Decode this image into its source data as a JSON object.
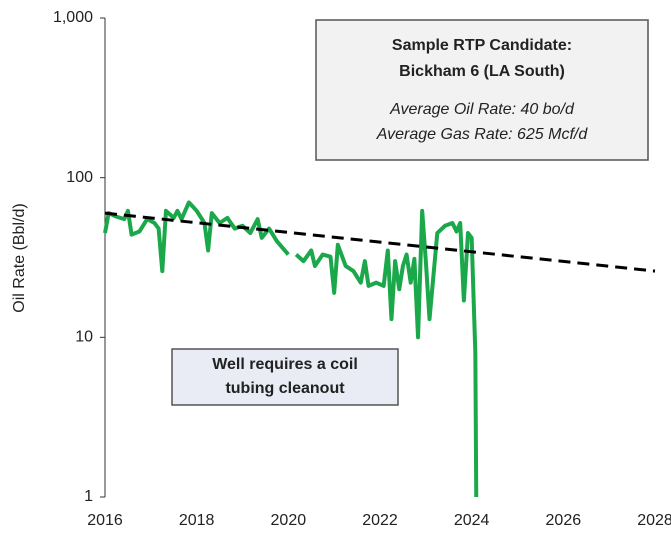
{
  "chart_data": {
    "type": "line",
    "ylabel": "Oil Rate (Bbl/d)",
    "log_y": true,
    "xlim": [
      2016,
      2028
    ],
    "xticks": [
      2016,
      2018,
      2020,
      2022,
      2024,
      2026,
      2028
    ],
    "ylim": [
      1,
      1000
    ],
    "yticks": [
      {
        "value": 1000,
        "label": "1,000"
      },
      100,
      10,
      1
    ],
    "x": [
      2016.0,
      2016.08,
      2016.25,
      2016.42,
      2016.5,
      2016.58,
      2016.75,
      2016.92,
      2017.08,
      2017.17,
      2017.25,
      2017.33,
      2017.5,
      2017.58,
      2017.67,
      2017.83,
      2018.0,
      2018.17,
      2018.25,
      2018.33,
      2018.5,
      2018.67,
      2018.83,
      2019.0,
      2019.17,
      2019.33,
      2019.42,
      2019.58,
      2019.75,
      2020.0,
      2020.08,
      2020.17,
      2020.33,
      2020.5,
      2020.58,
      2020.75,
      2020.92,
      2021.0,
      2021.08,
      2021.25,
      2021.42,
      2021.58,
      2021.67,
      2021.75,
      2021.92,
      2022.08,
      2022.17,
      2022.25,
      2022.33,
      2022.42,
      2022.5,
      2022.58,
      2022.67,
      2022.75,
      2022.83,
      2022.92,
      2023.0,
      2023.08,
      2023.25,
      2023.42,
      2023.58,
      2023.67,
      2023.75,
      2023.83,
      2023.92,
      2024.0,
      2024.08,
      2024.1
    ],
    "series": [
      {
        "color": "#1aa84a",
        "values": [
          45,
          60,
          57,
          55,
          62,
          44,
          46,
          55,
          52,
          48,
          26,
          62,
          56,
          62,
          55,
          70,
          62,
          52,
          35,
          60,
          52,
          56,
          48,
          50,
          45,
          55,
          42,
          48,
          40,
          33,
          null,
          33,
          30,
          35,
          28,
          33,
          32,
          19,
          38,
          28,
          26,
          22,
          30,
          21,
          22,
          21,
          35,
          13,
          30,
          20,
          28,
          33,
          22,
          31,
          10,
          62,
          30,
          13,
          45,
          50,
          52,
          46,
          52,
          17,
          45,
          42,
          8,
          1
        ]
      }
    ],
    "trend_line": {
      "x": [
        2016,
        2028
      ],
      "values": [
        60,
        26
      ],
      "color": "#000000",
      "dashed": true
    },
    "annotations": [
      {
        "title": [
          "Sample RTP Candidate:",
          "Bickham 6 (LA South)"
        ],
        "lines": [
          "Average Oil Rate: 40 bo/d",
          "Average Gas Rate: 625 Mcf/d"
        ],
        "fill": "#f2f2f2"
      },
      {
        "title": [
          "Well requires a coil",
          "tubing cleanout"
        ],
        "fill": "#e9ebf5"
      }
    ]
  }
}
